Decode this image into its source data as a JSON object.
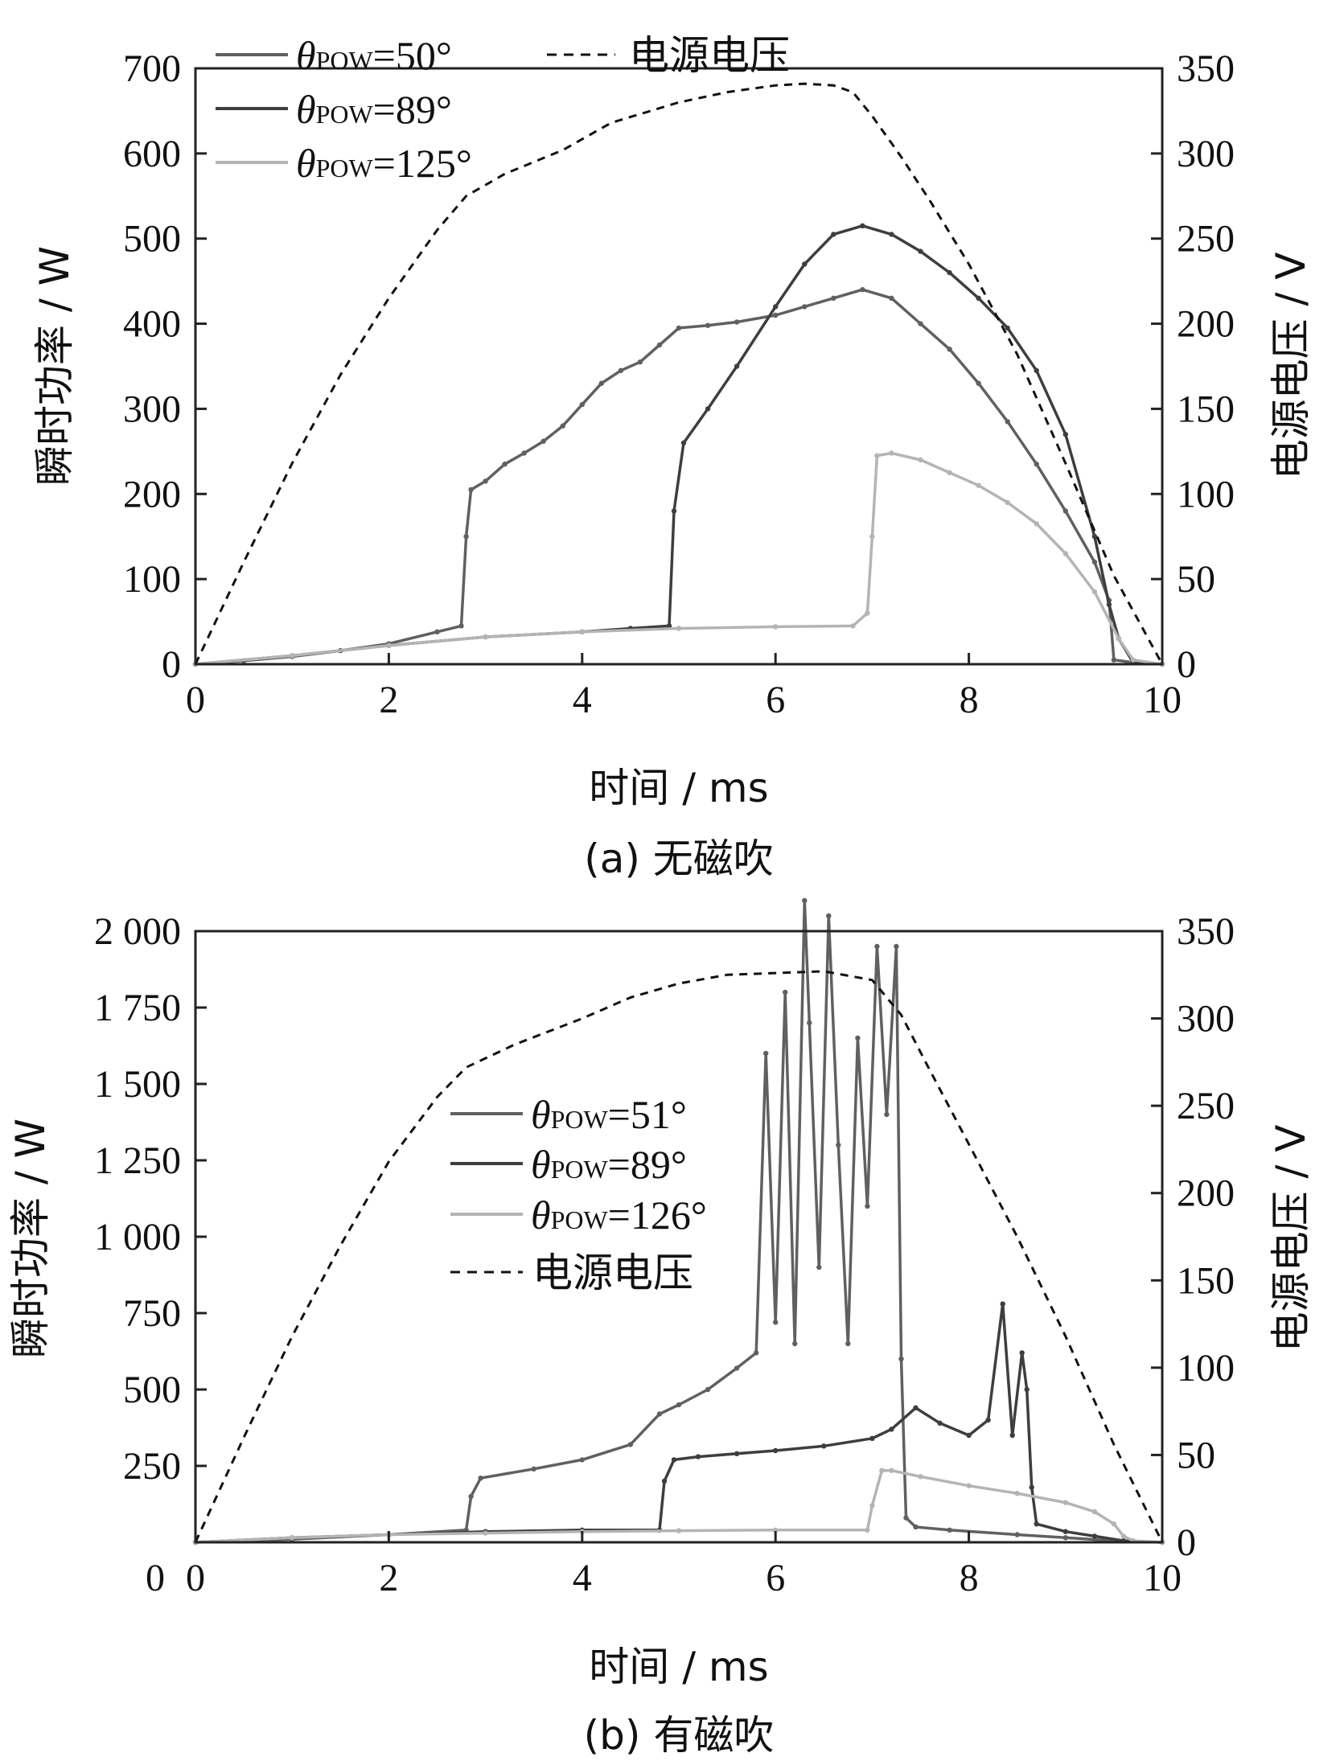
{
  "chart_data": [
    {
      "type": "line",
      "panel": "a",
      "caption": "(a)  无磁吹",
      "xlabel": "时间 / ms",
      "ylabel": "瞬时功率 / W",
      "y2label": "电源电压 / V",
      "xlim": [
        0,
        10
      ],
      "ylim": [
        0,
        700
      ],
      "y2lim": [
        0,
        350
      ],
      "xticks": [
        "0",
        "2",
        "4",
        "6",
        "8",
        "10"
      ],
      "yticks": [
        "0",
        "100",
        "200",
        "300",
        "400",
        "500",
        "600",
        "700"
      ],
      "y2ticks": [
        "0",
        "50",
        "100",
        "150",
        "200",
        "250",
        "300",
        "350"
      ],
      "legend": [
        {
          "sym": "θ",
          "sub": "POW",
          "val": "=50°",
          "color": "#606060"
        },
        {
          "sym": "θ",
          "sub": "POW",
          "val": "=89°",
          "color": "#3e3e3e"
        },
        {
          "sym": "θ",
          "sub": "POW",
          "val": "=125°",
          "color": "#b4b4b4"
        },
        {
          "cn": "电源电压",
          "color": "#111111",
          "dashed": true
        }
      ],
      "series": [
        {
          "legend_index": 0,
          "axis": "left",
          "color": "#606060",
          "x": [
            0,
            0.5,
            1,
            1.5,
            2,
            2.5,
            2.75,
            2.8,
            2.85,
            3.0,
            3.2,
            3.4,
            3.6,
            3.8,
            4.0,
            4.2,
            4.4,
            4.6,
            4.8,
            5.0,
            5.3,
            5.6,
            6.0,
            6.3,
            6.6,
            6.9,
            7.2,
            7.5,
            7.8,
            8.1,
            8.4,
            8.7,
            9.0,
            9.3,
            9.45,
            9.5,
            9.7,
            10.0
          ],
          "y": [
            0,
            4,
            9,
            16,
            24,
            38,
            45,
            150,
            205,
            215,
            235,
            248,
            262,
            280,
            305,
            330,
            345,
            355,
            375,
            395,
            398,
            402,
            410,
            420,
            430,
            440,
            430,
            400,
            370,
            330,
            285,
            235,
            180,
            120,
            75,
            5,
            2,
            0
          ]
        },
        {
          "legend_index": 1,
          "axis": "left",
          "color": "#3e3e3e",
          "x": [
            0,
            1,
            2,
            3,
            4,
            4.5,
            4.9,
            4.95,
            5.05,
            5.3,
            5.6,
            6.0,
            6.3,
            6.6,
            6.9,
            7.2,
            7.5,
            7.8,
            8.1,
            8.4,
            8.7,
            9.0,
            9.3,
            9.45,
            9.55,
            9.7,
            10.0
          ],
          "y": [
            0,
            10,
            22,
            32,
            38,
            42,
            45,
            180,
            260,
            300,
            350,
            420,
            470,
            505,
            515,
            505,
            485,
            460,
            430,
            395,
            345,
            270,
            150,
            70,
            30,
            2,
            0
          ]
        },
        {
          "legend_index": 2,
          "axis": "left",
          "color": "#b4b4b4",
          "x": [
            0,
            1,
            2,
            3,
            4,
            5,
            6,
            6.8,
            6.95,
            7.0,
            7.05,
            7.2,
            7.5,
            7.8,
            8.1,
            8.4,
            8.7,
            9.0,
            9.3,
            9.55,
            9.7,
            10.0
          ],
          "y": [
            0,
            10,
            22,
            32,
            38,
            42,
            44,
            45,
            60,
            150,
            245,
            248,
            240,
            225,
            210,
            190,
            165,
            130,
            85,
            30,
            5,
            0
          ]
        },
        {
          "legend_index": 3,
          "axis": "right",
          "color": "#111111",
          "dashed": true,
          "x": [
            0,
            0.5,
            1,
            1.5,
            2,
            2.5,
            2.8,
            3.2,
            3.8,
            4.3,
            5.0,
            5.5,
            6.0,
            6.3,
            6.6,
            6.8,
            7.0,
            7.3,
            7.6,
            8.0,
            8.5,
            9.0,
            9.5,
            10.0
          ],
          "y": [
            0,
            60,
            118,
            170,
            215,
            255,
            275,
            288,
            302,
            318,
            330,
            336,
            340,
            341,
            340,
            336,
            322,
            298,
            272,
            235,
            182,
            118,
            52,
            0
          ]
        }
      ]
    },
    {
      "type": "line",
      "panel": "b",
      "caption": "(b)  有磁吹",
      "xlabel": "时间 / ms",
      "ylabel": "瞬时功率 / W",
      "y2label": "电源电压 / V",
      "xlim": [
        0,
        10
      ],
      "ylim": [
        0,
        2000
      ],
      "y2lim": [
        0,
        350
      ],
      "xticks": [
        "0",
        "2",
        "4",
        "6",
        "8",
        "10"
      ],
      "yticks": [
        "250",
        "500",
        "750",
        "1 000",
        "1 250",
        "1 500",
        "1 750",
        "2 000"
      ],
      "y2ticks": [
        "0",
        "50",
        "100",
        "150",
        "200",
        "250",
        "300",
        "350"
      ],
      "legend": [
        {
          "sym": "θ",
          "sub": "POW",
          "val": "=51°",
          "color": "#606060"
        },
        {
          "sym": "θ",
          "sub": "POW",
          "val": "=89°",
          "color": "#3e3e3e"
        },
        {
          "sym": "θ",
          "sub": "POW",
          "val": "=126°",
          "color": "#b4b4b4"
        },
        {
          "cn": "电源电压",
          "color": "#111111",
          "dashed": true
        }
      ],
      "series": [
        {
          "legend_index": 0,
          "axis": "left",
          "color": "#606060",
          "x": [
            0,
            1,
            2,
            2.8,
            2.85,
            2.95,
            3.5,
            4.0,
            4.5,
            4.8,
            5.0,
            5.3,
            5.6,
            5.8,
            5.9,
            6.0,
            6.1,
            6.2,
            6.3,
            6.35,
            6.45,
            6.55,
            6.65,
            6.75,
            6.85,
            6.95,
            7.05,
            7.15,
            7.25,
            7.3,
            7.35,
            7.45,
            7.8,
            8.5,
            9.0,
            9.5,
            10.0
          ],
          "y": [
            0,
            10,
            25,
            40,
            150,
            210,
            240,
            270,
            320,
            420,
            450,
            500,
            570,
            620,
            1600,
            720,
            1800,
            650,
            2100,
            1700,
            900,
            2050,
            1300,
            650,
            1650,
            1100,
            1950,
            1400,
            1950,
            600,
            80,
            50,
            40,
            25,
            15,
            5,
            0
          ]
        },
        {
          "legend_index": 1,
          "axis": "left",
          "color": "#3e3e3e",
          "x": [
            0,
            1,
            2,
            3,
            4,
            4.8,
            4.85,
            4.95,
            5.2,
            5.6,
            6.0,
            6.5,
            7.0,
            7.2,
            7.45,
            7.7,
            8.0,
            8.2,
            8.35,
            8.45,
            8.55,
            8.6,
            8.65,
            8.7,
            9.0,
            9.3,
            9.6,
            10.0
          ],
          "y": [
            0,
            15,
            25,
            35,
            40,
            40,
            200,
            270,
            280,
            290,
            300,
            315,
            340,
            370,
            440,
            390,
            350,
            400,
            780,
            350,
            620,
            500,
            180,
            60,
            35,
            20,
            5,
            0
          ]
        },
        {
          "legend_index": 2,
          "axis": "left",
          "color": "#b4b4b4",
          "x": [
            0,
            1,
            2,
            3,
            4,
            5,
            6,
            6.95,
            7.0,
            7.1,
            7.2,
            7.5,
            8.0,
            8.5,
            9.0,
            9.3,
            9.5,
            9.6,
            9.7,
            10.0
          ],
          "y": [
            0,
            15,
            25,
            30,
            35,
            38,
            40,
            40,
            120,
            235,
            235,
            215,
            185,
            160,
            130,
            100,
            60,
            20,
            5,
            0
          ]
        },
        {
          "legend_index": 3,
          "axis": "right",
          "color": "#111111",
          "dashed": true,
          "x": [
            0,
            0.5,
            1,
            1.5,
            2,
            2.5,
            2.8,
            3.3,
            4.0,
            4.5,
            5.0,
            5.5,
            6.0,
            6.5,
            7.0,
            7.3,
            7.6,
            8.0,
            8.5,
            9.0,
            9.5,
            10.0
          ],
          "y": [
            0,
            60,
            118,
            170,
            218,
            255,
            272,
            285,
            300,
            312,
            320,
            325,
            326,
            327,
            322,
            302,
            270,
            228,
            175,
            118,
            56,
            0
          ]
        }
      ]
    }
  ]
}
